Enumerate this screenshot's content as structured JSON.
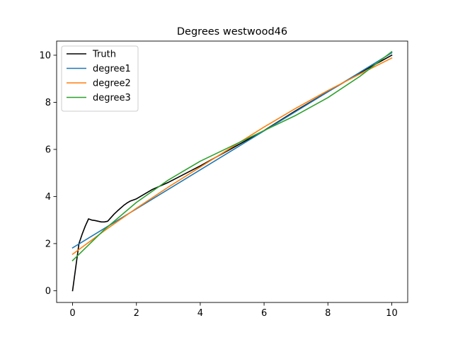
{
  "chart_data": {
    "type": "line",
    "title": "Degrees westwood46",
    "xlabel": "",
    "ylabel": "",
    "xlim": [
      -0.5,
      10.5
    ],
    "ylim": [
      -0.5,
      10.6
    ],
    "xticks": [
      0,
      2,
      4,
      6,
      8,
      10
    ],
    "yticks": [
      0,
      2,
      4,
      6,
      8,
      10
    ],
    "grid": false,
    "legend_position": "upper-left",
    "series": [
      {
        "name": "Truth",
        "color": "#000000",
        "x": [
          0,
          0.1,
          0.2,
          0.3,
          0.4,
          0.5,
          0.6,
          0.7,
          0.8,
          0.9,
          1.0,
          1.1,
          1.2,
          1.3,
          1.4,
          1.5,
          1.6,
          1.7,
          1.8,
          2.0,
          2.5,
          3.0,
          4.0,
          5.0,
          6.0,
          7.0,
          8.0,
          9.0,
          10.0
        ],
        "y": [
          0,
          1.0,
          2.0,
          2.4,
          2.75,
          3.05,
          3.0,
          2.98,
          2.95,
          2.92,
          2.92,
          2.95,
          3.1,
          3.25,
          3.38,
          3.5,
          3.62,
          3.72,
          3.8,
          3.9,
          4.3,
          4.6,
          5.3,
          6.05,
          6.8,
          7.65,
          8.45,
          9.25,
          10.0
        ]
      },
      {
        "name": "degree1",
        "color": "#1f77b4",
        "x": [
          0,
          10
        ],
        "y": [
          1.82,
          10.1
        ]
      },
      {
        "name": "degree2",
        "color": "#ff7f0e",
        "x": [
          0,
          1,
          2,
          3,
          4,
          5,
          6,
          7,
          8,
          9,
          10
        ],
        "y": [
          1.55,
          2.55,
          3.5,
          4.4,
          5.25,
          6.1,
          6.95,
          7.75,
          8.5,
          9.2,
          9.88
        ]
      },
      {
        "name": "degree3",
        "color": "#2ca02c",
        "x": [
          0,
          1,
          2,
          3,
          4,
          5,
          6,
          7,
          8,
          9,
          10
        ],
        "y": [
          1.28,
          2.6,
          3.75,
          4.7,
          5.5,
          6.15,
          6.8,
          7.45,
          8.2,
          9.1,
          10.15
        ]
      }
    ]
  }
}
